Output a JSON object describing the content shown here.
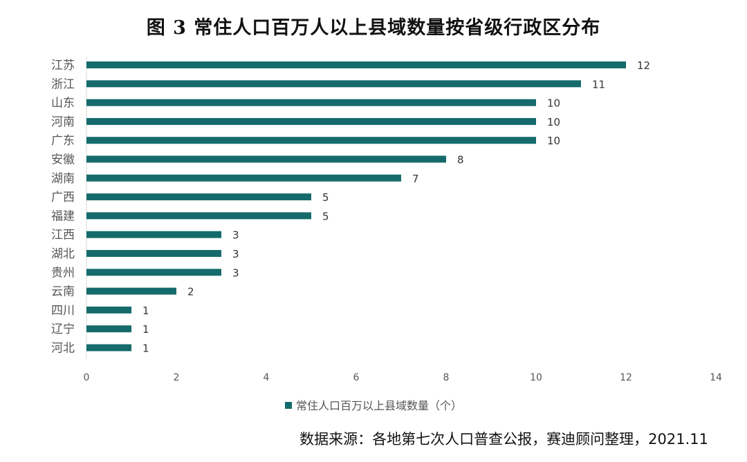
{
  "colors": {
    "bar": "#156b6b",
    "axis": "#d9d9d9"
  },
  "chart_data": {
    "type": "bar",
    "orientation": "horizontal",
    "title": "图 3  常住人口百万人以上县域数量按省级行政区分布",
    "categories": [
      "江苏",
      "浙江",
      "山东",
      "河南",
      "广东",
      "安徽",
      "湖南",
      "广西",
      "福建",
      "江西",
      "湖北",
      "贵州",
      "云南",
      "四川",
      "辽宁",
      "河北"
    ],
    "series": [
      {
        "name": "常住人口百万以上县域数量（个）",
        "values": [
          12,
          11,
          10,
          10,
          10,
          8,
          7,
          5,
          5,
          3,
          3,
          3,
          2,
          1,
          1,
          1
        ]
      }
    ],
    "xlim": [
      0,
      14
    ],
    "x_ticks": [
      "0",
      "2",
      "4",
      "6",
      "8",
      "10",
      "12",
      "14"
    ],
    "data_labels": true,
    "legend_position": "bottom",
    "grid": false
  },
  "source_note": "数据来源：各地第七次人口普查公报，赛迪顾问整理，2021.11"
}
